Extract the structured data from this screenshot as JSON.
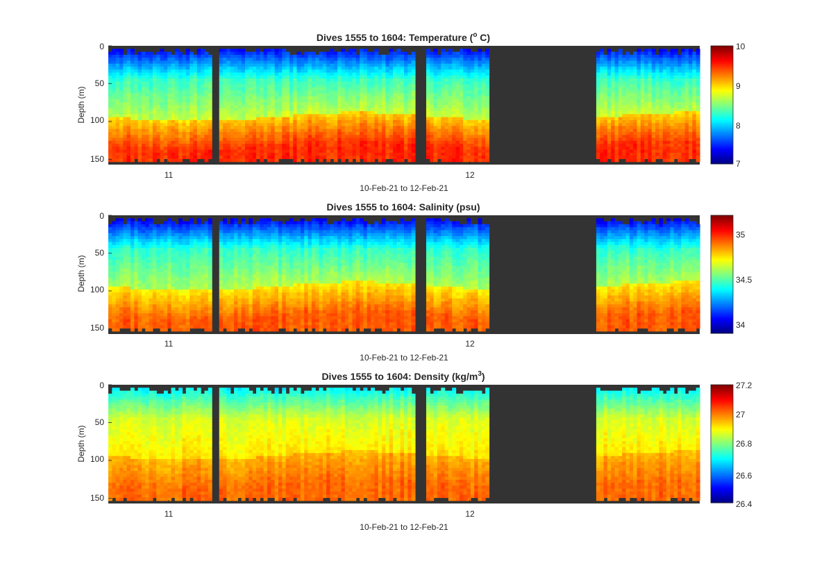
{
  "colors": {
    "background": "#ffffff",
    "no_data": "#333333",
    "text": "#262626",
    "colormap": "jet"
  },
  "chart_data": [
    {
      "type": "heatmap",
      "title_main": "Dives 1555 to 1604: Temperature (",
      "title_sup": "o",
      "title_end": " C)",
      "ylabel": "Depth (m)",
      "xlabel": "10-Feb-21 to 12-Feb-21",
      "x_ticks": [
        "11",
        "12"
      ],
      "y_ticks": [
        "0",
        "50",
        "100",
        "150"
      ],
      "ylim": [
        0,
        157
      ],
      "clim": [
        7,
        10
      ],
      "colorbar_ticks": [
        "7",
        "8",
        "9",
        "10"
      ],
      "gaps": [
        [
          0.177,
          0.19
        ],
        [
          0.521,
          0.54
        ],
        [
          0.641,
          0.822
        ]
      ],
      "profile": {
        "surface": 7.3,
        "mid": 8.3,
        "deep": 9.5,
        "thermocline_depth": [
          88,
          100
        ]
      }
    },
    {
      "type": "heatmap",
      "title_main": "Dives 1555 to 1604: Salinity (psu)",
      "title_sup": "",
      "title_end": "",
      "ylabel": "Depth (m)",
      "xlabel": "10-Feb-21 to 12-Feb-21",
      "x_ticks": [
        "11",
        "12"
      ],
      "y_ticks": [
        "0",
        "50",
        "100",
        "150"
      ],
      "ylim": [
        0,
        157
      ],
      "clim": [
        33.9,
        35.2
      ],
      "colorbar_ticks": [
        "34",
        "34.5",
        "35"
      ],
      "gaps": [
        [
          0.177,
          0.19
        ],
        [
          0.521,
          0.54
        ],
        [
          0.641,
          0.822
        ]
      ],
      "profile": {
        "surface": 34.0,
        "mid": 34.45,
        "deep": 34.92,
        "thermocline_depth": [
          88,
          100
        ]
      }
    },
    {
      "type": "heatmap",
      "title_main": "Dives 1555 to 1604: Density (kg/m",
      "title_sup": "3",
      "title_end": ")",
      "ylabel": "Depth (m)",
      "xlabel": "10-Feb-21 to 12-Feb-21",
      "x_ticks": [
        "11",
        "12"
      ],
      "y_ticks": [
        "0",
        "50",
        "100",
        "150"
      ],
      "ylim": [
        0,
        157
      ],
      "clim": [
        26.4,
        27.2
      ],
      "colorbar_ticks": [
        "26.4",
        "26.6",
        "26.8",
        "27",
        "27.2"
      ],
      "gaps": [
        [
          0.177,
          0.19
        ],
        [
          0.521,
          0.54
        ],
        [
          0.641,
          0.822
        ]
      ],
      "profile": {
        "surface": 26.68,
        "mid": 26.87,
        "deep": 27.02,
        "thermocline_depth": [
          88,
          100
        ]
      }
    }
  ]
}
